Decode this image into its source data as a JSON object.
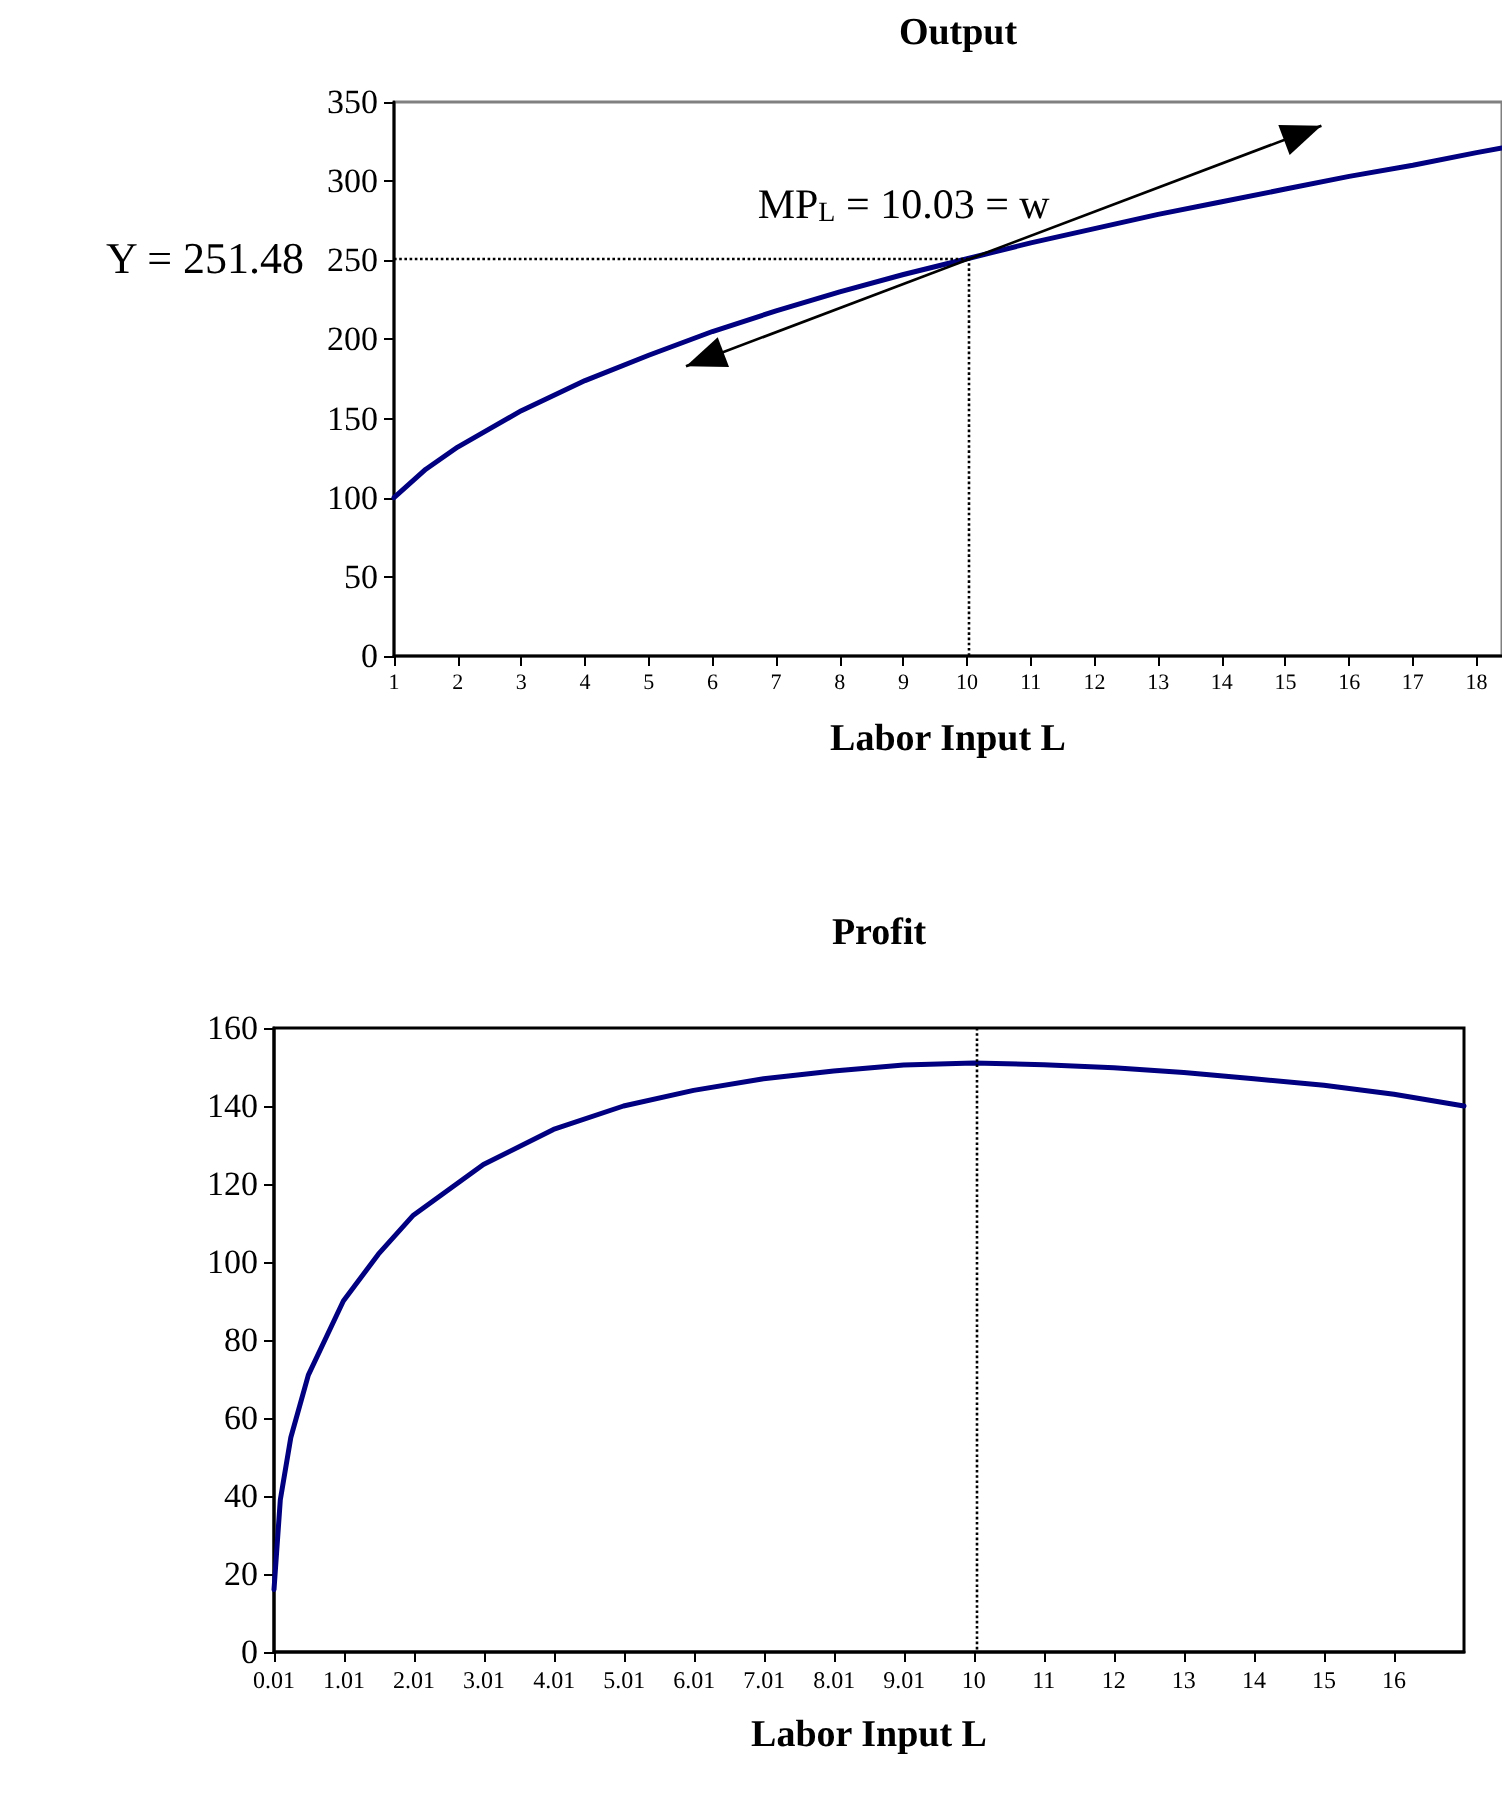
{
  "chart_data": [
    {
      "type": "line",
      "title": "Output",
      "xlabel": "Labor Input L",
      "xlim": [
        1,
        18.4
      ],
      "xticks": [
        1,
        2,
        3,
        4,
        5,
        6,
        7,
        8,
        9,
        10,
        11,
        12,
        13,
        14,
        15,
        16,
        17,
        18
      ],
      "ylim": [
        0,
        350
      ],
      "yticks": [
        0,
        50,
        100,
        150,
        200,
        250,
        300,
        350
      ],
      "grid": false,
      "marker": "none",
      "line_style": "solid",
      "series": [
        {
          "color": "#000080",
          "x": [
            1,
            1.5,
            2,
            3,
            4,
            5,
            6,
            7,
            8,
            9,
            10,
            11,
            12,
            13,
            14,
            15,
            16,
            17,
            18,
            18.4
          ],
          "values": [
            100,
            118,
            132,
            155,
            174,
            190,
            205,
            218,
            230,
            241,
            251,
            261,
            270,
            279,
            287,
            295,
            303,
            310,
            318,
            321
          ]
        }
      ],
      "ref_lines": [
        {
          "axis": "y",
          "value": 251.48,
          "label": "Y = 251.48",
          "line_style": "dotted",
          "color": "#000000"
        },
        {
          "axis": "x",
          "value": 10.03,
          "line_style": "dotted",
          "color": "#000000"
        }
      ],
      "annotations": [
        "MP$_{L}$ = 10.03 = w"
      ]
    },
    {
      "type": "line",
      "title": "Profit",
      "xlabel": "Labor Input L",
      "xlim": [
        0.01,
        17
      ],
      "xticks": [
        0.01,
        1.01,
        2.01,
        3.01,
        4.01,
        5.01,
        6.01,
        7.01,
        8.01,
        9.01,
        10,
        11,
        12,
        13,
        14,
        15,
        16
      ],
      "ylim": [
        0,
        160
      ],
      "yticks": [
        0,
        20,
        40,
        60,
        80,
        100,
        120,
        140,
        160
      ],
      "grid": false,
      "marker": "none",
      "line_style": "solid",
      "series": [
        {
          "color": "#000080",
          "x": [
            0.01,
            0.1,
            0.25,
            0.5,
            1,
            1.5,
            2,
            3,
            4,
            5,
            6,
            7,
            8,
            9,
            10,
            11,
            12,
            13,
            14,
            15,
            16,
            17
          ],
          "values": [
            16,
            39,
            55,
            71,
            90,
            102,
            112,
            125,
            134,
            140,
            144,
            147,
            149,
            150.5,
            151,
            150.6,
            149.8,
            148.6,
            147,
            145.3,
            143,
            140
          ]
        }
      ],
      "ref_lines": [
        {
          "axis": "x",
          "value": 10.03,
          "line_style": "dotted",
          "color": "#000000"
        }
      ]
    }
  ]
}
